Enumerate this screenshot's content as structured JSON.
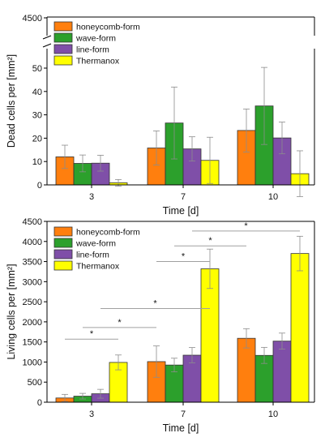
{
  "colors": {
    "honeycomb": "#ff7f0e",
    "wave": "#2ca02c",
    "line": "#7f4fa8",
    "thermanox": "#ffff00",
    "significance_line": "#a0a0a0",
    "error_bar": "#8c8c8c"
  },
  "chart_data": [
    {
      "type": "bar",
      "categories": [
        "3",
        "7",
        "10"
      ],
      "xlabel": "Time [d]",
      "ylabel": "Dead cells per [mm²]",
      "ylim": [
        0,
        4500
      ],
      "axis_break": {
        "from": 55,
        "to": 4500
      },
      "yticks": [
        "0",
        "10",
        "20",
        "30",
        "40",
        "50",
        "4500"
      ],
      "legend_position": "top-left",
      "grid": false,
      "series": [
        {
          "name": "honeycomb-form",
          "color_key": "honeycomb",
          "values": [
            12,
            15.8,
            23.3
          ],
          "errors": [
            5,
            7.3,
            9.2
          ]
        },
        {
          "name": "wave-form",
          "color_key": "wave",
          "values": [
            9.2,
            26.5,
            33.8
          ],
          "errors": [
            3.6,
            15.4,
            16.5
          ]
        },
        {
          "name": "line-form",
          "color_key": "line",
          "values": [
            9.3,
            15.4,
            20.1
          ],
          "errors": [
            3.4,
            5.2,
            6.8
          ]
        },
        {
          "name": "Thermanox",
          "color_key": "thermanox",
          "values": [
            0.9,
            10.5,
            4.8
          ],
          "errors": [
            1.4,
            9.9,
            9.8
          ]
        }
      ]
    },
    {
      "type": "bar",
      "categories": [
        "3",
        "7",
        "10"
      ],
      "xlabel": "Time [d]",
      "ylabel": "Living cells per [mm²]",
      "ylim": [
        0,
        4500
      ],
      "yticks": [
        "0",
        "500",
        "1000",
        "1500",
        "2000",
        "2500",
        "3000",
        "3500",
        "4000",
        "4500"
      ],
      "legend_position": "top-left",
      "grid": false,
      "series": [
        {
          "name": "honeycomb-form",
          "color_key": "honeycomb",
          "values": [
            105,
            1010,
            1590
          ],
          "errors": [
            90,
            390,
            240
          ]
        },
        {
          "name": "wave-form",
          "color_key": "wave",
          "values": [
            150,
            925,
            1165
          ],
          "errors": [
            70,
            170,
            200
          ]
        },
        {
          "name": "line-form",
          "color_key": "line",
          "values": [
            210,
            1170,
            1520
          ],
          "errors": [
            110,
            190,
            200
          ]
        },
        {
          "name": "Thermanox",
          "color_key": "thermanox",
          "values": [
            990,
            3320,
            3700
          ],
          "errors": [
            185,
            490,
            430
          ]
        }
      ],
      "annotations": [
        {
          "text": "*",
          "from": {
            "category": "3",
            "series": 0
          },
          "to": {
            "category": "3",
            "series": 3
          },
          "y": 1570
        },
        {
          "text": "*",
          "from": {
            "category": "3",
            "series": 1
          },
          "to": {
            "category": "7",
            "series": 0
          },
          "y": 1860
        },
        {
          "text": "*",
          "from": {
            "category": "3",
            "series": 2
          },
          "to": {
            "category": "7",
            "series": 3
          },
          "y": 2330
        },
        {
          "text": "*",
          "from": {
            "category": "7",
            "series": 0
          },
          "to": {
            "category": "7",
            "series": 3
          },
          "y": 3500
        },
        {
          "text": "*",
          "from": {
            "category": "7",
            "series": 1
          },
          "to": {
            "category": "10",
            "series": 0
          },
          "y": 3890
        },
        {
          "text": "*",
          "from": {
            "category": "7",
            "series": 2
          },
          "to": {
            "category": "10",
            "series": 3
          },
          "y": 4260
        }
      ]
    }
  ]
}
